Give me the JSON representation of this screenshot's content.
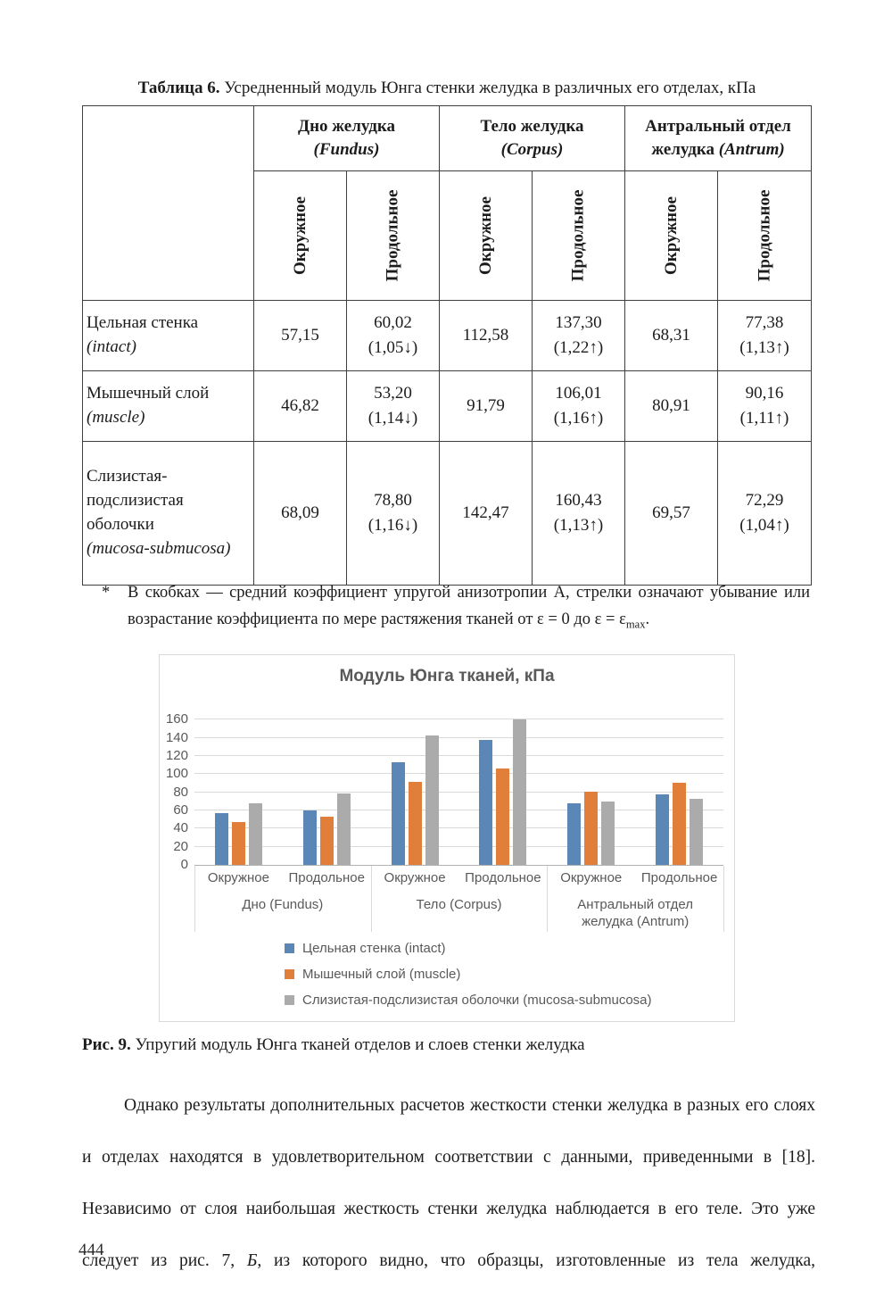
{
  "page": {
    "number": "444"
  },
  "table": {
    "caption_label": "Таблица 6.",
    "caption_text": "Усредненный модуль Юнга стенки желудка в различных его отделах, кПа",
    "groups": [
      {
        "line1": "Дно желудка",
        "line2_plain": "",
        "latin": "(Fundus)"
      },
      {
        "line1": "Тело желудка",
        "line2_plain": "",
        "latin": "(Corpus)"
      },
      {
        "line1": "Антральный отдел",
        "line2_plain": "желудка ",
        "latin": "(Antrum)"
      }
    ],
    "sub_headers": [
      "Окружное",
      "Продольное",
      "Окружное",
      "Продольное",
      "Окружное",
      "Продольное"
    ],
    "rows": [
      {
        "label": "Цельная стенка",
        "latin": "(intact)",
        "cells": [
          {
            "v": "57,15",
            "a": ""
          },
          {
            "v": "60,02",
            "a": "(1,05↓)"
          },
          {
            "v": "112,58",
            "a": ""
          },
          {
            "v": "137,30",
            "a": "(1,22↑)"
          },
          {
            "v": "68,31",
            "a": ""
          },
          {
            "v": "77,38",
            "a": "(1,13↑)"
          }
        ]
      },
      {
        "label": "Мышечный слой",
        "latin": "(muscle)",
        "cells": [
          {
            "v": "46,82",
            "a": ""
          },
          {
            "v": "53,20",
            "a": "(1,14↓)"
          },
          {
            "v": "91,79",
            "a": ""
          },
          {
            "v": "106,01",
            "a": "(1,16↑)"
          },
          {
            "v": "80,91",
            "a": ""
          },
          {
            "v": "90,16",
            "a": "(1,11↑)"
          }
        ]
      },
      {
        "label": "Слизистая-подслизистая оболочки",
        "latin": "(mucosa-submucosa)",
        "cells": [
          {
            "v": "68,09",
            "a": ""
          },
          {
            "v": "78,80",
            "a": "(1,16↓)"
          },
          {
            "v": "142,47",
            "a": ""
          },
          {
            "v": "160,43",
            "a": "(1,13↑)"
          },
          {
            "v": "69,57",
            "a": ""
          },
          {
            "v": "72,29",
            "a": "(1,04↑)"
          }
        ]
      }
    ],
    "footnote": {
      "marker": "*",
      "text_before_sub": "В скобках — средний коэффициент упругой анизотропии А, стрелки означают убывание или возрастание коэффициента по мере растяжения тканей от ε = 0 до ε = ε",
      "sub": "max",
      "text_after_sub": "."
    }
  },
  "chart_data": {
    "type": "bar",
    "title": "Модуль Юнга тканей, кПа",
    "categories": [
      "Окружное",
      "Продольное",
      "Окружное",
      "Продольное",
      "Окружное",
      "Продольное"
    ],
    "group_labels": [
      "Дно (Fundus)",
      "Тело (Corpus)",
      "Антральный отдел желудка (Antrum)"
    ],
    "series": [
      {
        "name": "Цельная стенка (intact)",
        "color": "#5b87b7",
        "values": [
          57.15,
          60.02,
          112.58,
          137.3,
          68.31,
          77.38
        ]
      },
      {
        "name": "Мышечный слой (muscle)",
        "color": "#e07e3a",
        "values": [
          46.82,
          53.2,
          91.79,
          106.01,
          80.91,
          90.16
        ]
      },
      {
        "name": "Слизистая-подслизистая оболочки (mucosa-submucosa)",
        "color": "#ababab",
        "values": [
          68.09,
          78.8,
          142.47,
          160.43,
          69.57,
          72.29
        ]
      }
    ],
    "ylim": [
      0,
      170
    ],
    "yticks": [
      0,
      20,
      40,
      60,
      80,
      100,
      120,
      140,
      160
    ],
    "grid": true,
    "legend_position": "bottom-left"
  },
  "figure": {
    "caption_label": "Рис. 9.",
    "caption_text": "Упругий модуль Юнга тканей отделов и слоев стенки желудка"
  },
  "paragraph": {
    "text_before_italic": "Однако результаты дополнительных расчетов жесткости стенки желудка в разных его слоях и отделах находятся в удовлетворительном соответствии с данными, приведенными в [18]. Независимо от слоя наибольшая жесткость стенки желудка наблюдается в его теле. Это уже следует из рис. 7, ",
    "italic": "Б",
    "text_after_italic": ", из которого видно, что образцы, изготовленные из тела желудка,"
  }
}
